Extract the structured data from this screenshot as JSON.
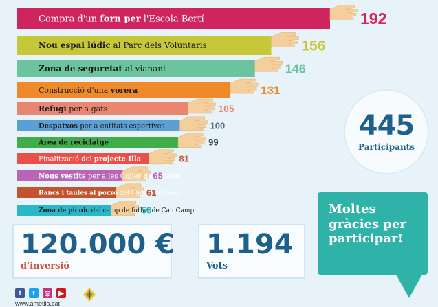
{
  "chart_data": {
    "type": "bar",
    "orientation": "horizontal",
    "categories": [
      "Compra d'un forn per l'Escola Berti",
      "Nou espai lúdic al Parc dels Voluntaris",
      "Zona de seguretat al vianant",
      "Construcció d'una vorera",
      "Refugi per a gats",
      "Despatxos per a entitats esportives",
      "Àrea de reciclatge",
      "Finalització del projecte Illa",
      "Nous vestits per a les Colles de Gitanes",
      "Bancs i taules al porxo del Club Can Camp",
      "Zona de picnic del camp de futbol de Can Camp"
    ],
    "labels": [
      [
        {
          "t": "Compra d'un ",
          "b": false
        },
        {
          "t": "forn per",
          "b": true
        },
        {
          "t": " l'Escola Bertí",
          "b": false
        }
      ],
      [
        {
          "t": "Nou espai lúdic",
          "b": true
        },
        {
          "t": " al Parc dels Voluntaris",
          "b": false
        }
      ],
      [
        {
          "t": "Zona de seguretat",
          "b": true
        },
        {
          "t": " al vianant",
          "b": false
        }
      ],
      [
        {
          "t": "Construcció d'una ",
          "b": false
        },
        {
          "t": "vorera",
          "b": true
        }
      ],
      [
        {
          "t": "Refugi",
          "b": true
        },
        {
          "t": " per a gats",
          "b": false
        }
      ],
      [
        {
          "t": "Despatxos",
          "b": true
        },
        {
          "t": " per a entitats esportives",
          "b": false
        }
      ],
      [
        {
          "t": "Àrea de reciclatge",
          "b": true
        }
      ],
      [
        {
          "t": "Finalització del ",
          "b": false
        },
        {
          "t": "projecte Illa",
          "b": true
        }
      ],
      [
        {
          "t": "Nous vestits",
          "b": true
        },
        {
          "t": " per a les Colles de Gitanes",
          "b": false
        }
      ],
      [
        {
          "t": "Bancs i taules al porxo",
          "b": true
        },
        {
          "t": " del Club Can Camp",
          "b": false
        }
      ],
      [
        {
          "t": "Zona de picnic",
          "b": true
        },
        {
          "t": " del camp de futbol de Can Camp",
          "b": false
        }
      ]
    ],
    "values": [
      192,
      156,
      146,
      131,
      105,
      100,
      99,
      81,
      65,
      61,
      58
    ],
    "colors": [
      "#d0245e",
      "#c6c83a",
      "#6cc3a0",
      "#ef8a2b",
      "#e98672",
      "#5aa0d6",
      "#3fae4a",
      "#e8514a",
      "#b865b8",
      "#c4542f",
      "#2ab7c7"
    ],
    "value_colors": [
      "#d0245e",
      "#c6c83a",
      "#6cc3a0",
      "#ef8a2b",
      "#e98672",
      "#5a6a7a",
      "#3b4a59",
      "#d0533d",
      "#b865b8",
      "#c4542f",
      "#2ab7c7"
    ],
    "label_colors": [
      "#ffffff",
      "#1a1a1a",
      "#1a1a1a",
      "#1a1a1a",
      "#1a1a1a",
      "#1a1a1a",
      "#1a1a1a",
      "#ffffff",
      "#ffffff",
      "#ffffff",
      "#1a1a1a"
    ]
  },
  "participants": {
    "value": "445",
    "label": "Participants"
  },
  "investment": {
    "value": "120.000 €",
    "label": "d'inversió"
  },
  "votes": {
    "value": "1.194",
    "label": "Vots"
  },
  "thanks": {
    "line1": "Moltes",
    "line2": "gràcies per",
    "line3": "participar!"
  },
  "social": {
    "icons": [
      "facebook-icon",
      "twitter-icon",
      "instagram-icon",
      "youtube-icon"
    ],
    "website": "www.ametlla.cat"
  }
}
